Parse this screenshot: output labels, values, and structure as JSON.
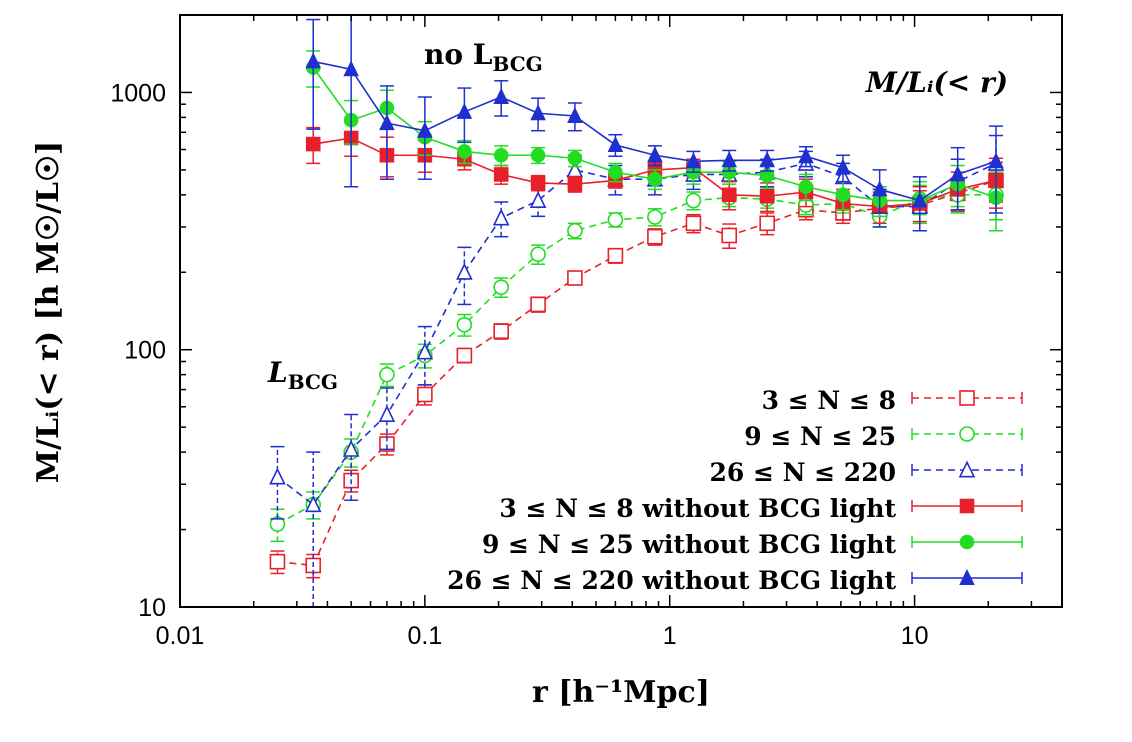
{
  "chart_data": {
    "type": "line",
    "xlabel": "r [h⁻¹Mpc]",
    "ylabel": "M/Lᵢ(< r) [h M☉/L☉]",
    "xscale": "log",
    "yscale": "log",
    "xlim": [
      0.01,
      40
    ],
    "ylim": [
      10,
      2000
    ],
    "x_ticks": [
      {
        "value": 0.01,
        "label": "0.01"
      },
      {
        "value": 0.1,
        "label": "0.1"
      },
      {
        "value": 1,
        "label": "1"
      },
      {
        "value": 10,
        "label": "10"
      }
    ],
    "y_ticks": [
      {
        "value": 10,
        "label": "10"
      },
      {
        "value": 100,
        "label": "100"
      },
      {
        "value": 1000,
        "label": "1000"
      }
    ],
    "grid": false,
    "legend_position": "bottom-right",
    "annotations": [
      {
        "text": "M/Lᵢ(< r)",
        "position": "top-right"
      },
      {
        "text": "no L",
        "sub": "BCG",
        "position": "top-center"
      },
      {
        "text": "L",
        "sub": "BCG",
        "position": "middle-left"
      }
    ],
    "series": [
      {
        "name": "3 ≤ N ≤ 8",
        "color": "#e8202a",
        "dash": true,
        "marker": "square",
        "filled": false,
        "x": [
          0.025,
          0.035,
          0.05,
          0.07,
          0.1,
          0.145,
          0.205,
          0.29,
          0.41,
          0.6,
          0.87,
          1.25,
          1.75,
          2.5,
          3.6,
          5.1,
          7.2,
          10.5,
          15,
          21.5
        ],
        "y": [
          15,
          14.5,
          31,
          43,
          67,
          95,
          118,
          150,
          190,
          232,
          275,
          310,
          278,
          310,
          350,
          340,
          355,
          365,
          405,
          455
        ],
        "err": [
          1.5,
          1.5,
          3,
          4,
          6,
          6,
          8,
          10,
          10,
          15,
          20,
          25,
          30,
          30,
          30,
          30,
          30,
          50,
          60,
          80
        ]
      },
      {
        "name": "9 ≤ N ≤ 25",
        "color": "#22dd22",
        "dash": true,
        "marker": "circle",
        "filled": false,
        "x": [
          0.025,
          0.035,
          0.05,
          0.07,
          0.1,
          0.145,
          0.205,
          0.29,
          0.41,
          0.6,
          0.87,
          1.25,
          1.75,
          2.5,
          3.6,
          5.1,
          7.2,
          10.5,
          15,
          21.5
        ],
        "y": [
          21,
          25,
          40,
          80,
          95,
          125,
          175,
          235,
          290,
          320,
          328,
          380,
          390,
          385,
          365,
          370,
          330,
          385,
          400,
          400
        ],
        "err": [
          3,
          3,
          5,
          8,
          10,
          12,
          15,
          20,
          20,
          20,
          25,
          30,
          30,
          30,
          30,
          30,
          30,
          50,
          60,
          80
        ]
      },
      {
        "name": "26 ≤ N ≤ 220",
        "color": "#1f2fd0",
        "dash": true,
        "marker": "triangle",
        "filled": false,
        "x": [
          0.025,
          0.035,
          0.05,
          0.07,
          0.1,
          0.145,
          0.205,
          0.29,
          0.41,
          0.6,
          0.87,
          1.25,
          1.75,
          2.5,
          3.6,
          5.1,
          7.2,
          10.5,
          15,
          21.5
        ],
        "y": [
          32,
          25,
          41,
          56,
          98,
          200,
          325,
          380,
          500,
          460,
          460,
          480,
          480,
          490,
          530,
          470,
          360,
          360,
          450,
          530
        ],
        "err": [
          10,
          15,
          15,
          15,
          25,
          50,
          50,
          50,
          70,
          60,
          60,
          60,
          60,
          60,
          60,
          60,
          60,
          70,
          100,
          150
        ]
      },
      {
        "name": "3 ≤ N ≤ 8 without BCG light",
        "color": "#e8202a",
        "dash": false,
        "marker": "square",
        "filled": true,
        "x": [
          0.035,
          0.05,
          0.07,
          0.1,
          0.145,
          0.205,
          0.29,
          0.41,
          0.6,
          0.87,
          1.25,
          1.75,
          2.5,
          3.6,
          5.1,
          7.2,
          10.5,
          15,
          21.5
        ],
        "y": [
          630,
          665,
          570,
          570,
          550,
          480,
          445,
          440,
          455,
          500,
          510,
          400,
          395,
          410,
          370,
          360,
          370,
          420,
          455
        ],
        "err": [
          100,
          100,
          100,
          80,
          50,
          40,
          30,
          30,
          30,
          35,
          40,
          50,
          50,
          50,
          50,
          50,
          60,
          70,
          100
        ]
      },
      {
        "name": "9 ≤ N ≤ 25 without BCG light",
        "color": "#22dd22",
        "dash": false,
        "marker": "circle",
        "filled": true,
        "x": [
          0.035,
          0.05,
          0.07,
          0.1,
          0.145,
          0.205,
          0.29,
          0.41,
          0.6,
          0.87,
          1.25,
          1.75,
          2.5,
          3.6,
          5.1,
          7.2,
          10.5,
          15,
          21.5
        ],
        "y": [
          1250,
          780,
          870,
          670,
          590,
          570,
          570,
          555,
          490,
          460,
          490,
          490,
          475,
          430,
          400,
          380,
          380,
          440,
          390
        ],
        "err": [
          200,
          150,
          150,
          100,
          60,
          50,
          40,
          40,
          40,
          40,
          50,
          50,
          50,
          50,
          50,
          50,
          70,
          80,
          100
        ]
      },
      {
        "name": "26 ≤ N ≤ 220 without BCG light",
        "color": "#1f2fd0",
        "dash": false,
        "marker": "triangle",
        "filled": true,
        "x": [
          0.035,
          0.05,
          0.07,
          0.1,
          0.145,
          0.205,
          0.29,
          0.41,
          0.6,
          0.87,
          1.25,
          1.75,
          2.5,
          3.6,
          5.1,
          7.2,
          10.5,
          15,
          21.5
        ],
        "y": [
          1320,
          1230,
          760,
          710,
          840,
          960,
          830,
          810,
          625,
          570,
          540,
          545,
          545,
          565,
          510,
          420,
          380,
          480,
          540
        ],
        "err": [
          600,
          800,
          300,
          250,
          200,
          150,
          120,
          100,
          60,
          50,
          50,
          50,
          50,
          50,
          60,
          80,
          90,
          130,
          200
        ]
      }
    ]
  }
}
